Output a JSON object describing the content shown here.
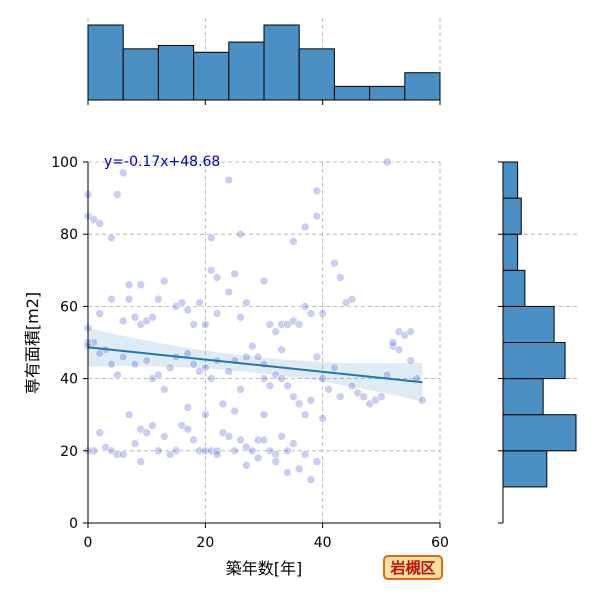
{
  "chart_data": {
    "type": "scatter",
    "xlabel": "築年数[年]",
    "ylabel": "専有面積[m2]",
    "xlim": [
      0,
      60
    ],
    "ylim": [
      0,
      100
    ],
    "x_ticks": [
      "0",
      "20",
      "40",
      "60"
    ],
    "y_ticks": [
      "0",
      "20",
      "40",
      "60",
      "80",
      "100"
    ],
    "regression": {
      "label": "y=-0.17x+48.68",
      "slope": -0.17,
      "intercept": 48.68,
      "x_range": [
        0,
        57
      ]
    },
    "badge": "岩槻区",
    "grid": true,
    "series": [
      {
        "type": "scatter",
        "points": [
          [
            0,
            91
          ],
          [
            0,
            85
          ],
          [
            1,
            84
          ],
          [
            2,
            83
          ],
          [
            5,
            91
          ],
          [
            6,
            97
          ],
          [
            4,
            79
          ],
          [
            2,
            58
          ],
          [
            0,
            54
          ],
          [
            1,
            50
          ],
          [
            0,
            50
          ],
          [
            0,
            49
          ],
          [
            3,
            48
          ],
          [
            4,
            62
          ],
          [
            6,
            56
          ],
          [
            7,
            66
          ],
          [
            7,
            62
          ],
          [
            8,
            57
          ],
          [
            9,
            55
          ],
          [
            9,
            66
          ],
          [
            10,
            56
          ],
          [
            11,
            57
          ],
          [
            12,
            62
          ],
          [
            13,
            67
          ],
          [
            15,
            60
          ],
          [
            16,
            61
          ],
          [
            17,
            59
          ],
          [
            18,
            55
          ],
          [
            19,
            61
          ],
          [
            20,
            55
          ],
          [
            21,
            70
          ],
          [
            22,
            68
          ],
          [
            22,
            58
          ],
          [
            24,
            64
          ],
          [
            25,
            69
          ],
          [
            26,
            57
          ],
          [
            27,
            61
          ],
          [
            28,
            49
          ],
          [
            30,
            67
          ],
          [
            31,
            55
          ],
          [
            32,
            53
          ],
          [
            33,
            48
          ],
          [
            33,
            55
          ],
          [
            34,
            55
          ],
          [
            35,
            56
          ],
          [
            36,
            55
          ],
          [
            37,
            60
          ],
          [
            38,
            58
          ],
          [
            39,
            85
          ],
          [
            39,
            92
          ],
          [
            40,
            58
          ],
          [
            37,
            82
          ],
          [
            35,
            78
          ],
          [
            42,
            72
          ],
          [
            43,
            68
          ],
          [
            44,
            61
          ],
          [
            45,
            62
          ],
          [
            21,
            79
          ],
          [
            24,
            95
          ],
          [
            26,
            80
          ],
          [
            2,
            47
          ],
          [
            4,
            44
          ],
          [
            5,
            41
          ],
          [
            6,
            46
          ],
          [
            8,
            44
          ],
          [
            10,
            45
          ],
          [
            11,
            40
          ],
          [
            12,
            41
          ],
          [
            13,
            37
          ],
          [
            14,
            43
          ],
          [
            15,
            46
          ],
          [
            17,
            47
          ],
          [
            18,
            44
          ],
          [
            19,
            42
          ],
          [
            20,
            43
          ],
          [
            21,
            40
          ],
          [
            22,
            45
          ],
          [
            24,
            42
          ],
          [
            25,
            45
          ],
          [
            26,
            37
          ],
          [
            27,
            46
          ],
          [
            29,
            46
          ],
          [
            30,
            40
          ],
          [
            31,
            38
          ],
          [
            32,
            41
          ],
          [
            33,
            40
          ],
          [
            34,
            38
          ],
          [
            35,
            35
          ],
          [
            36,
            33
          ],
          [
            37,
            30
          ],
          [
            38,
            34
          ],
          [
            39,
            46
          ],
          [
            40,
            40
          ],
          [
            41,
            37
          ],
          [
            42,
            43
          ],
          [
            43,
            35
          ],
          [
            45,
            38
          ],
          [
            46,
            36
          ],
          [
            47,
            35
          ],
          [
            48,
            33
          ],
          [
            49,
            34
          ],
          [
            50,
            35
          ],
          [
            51,
            41
          ],
          [
            52,
            49
          ],
          [
            52,
            50
          ],
          [
            53,
            48
          ],
          [
            53,
            53
          ],
          [
            54,
            52
          ],
          [
            55,
            53
          ],
          [
            56,
            40
          ],
          [
            57,
            34
          ],
          [
            51,
            100
          ],
          [
            55,
            45
          ],
          [
            2,
            25
          ],
          [
            3,
            21
          ],
          [
            4,
            20
          ],
          [
            5,
            19
          ],
          [
            7,
            30
          ],
          [
            8,
            22
          ],
          [
            9,
            26
          ],
          [
            9,
            17
          ],
          [
            10,
            25
          ],
          [
            11,
            27
          ],
          [
            12,
            20
          ],
          [
            13,
            24
          ],
          [
            14,
            19
          ],
          [
            15,
            20
          ],
          [
            16,
            27
          ],
          [
            17,
            26
          ],
          [
            17,
            32
          ],
          [
            18,
            23
          ],
          [
            19,
            20
          ],
          [
            20,
            20
          ],
          [
            20,
            30
          ],
          [
            21,
            20
          ],
          [
            22,
            20
          ],
          [
            23,
            25
          ],
          [
            24,
            24
          ],
          [
            25,
            20
          ],
          [
            26,
            23
          ],
          [
            27,
            21
          ],
          [
            28,
            20
          ],
          [
            29,
            23
          ],
          [
            29,
            18
          ],
          [
            30,
            23
          ],
          [
            30,
            30
          ],
          [
            31,
            20
          ],
          [
            32,
            19
          ],
          [
            33,
            24
          ],
          [
            34,
            20
          ],
          [
            35,
            22
          ],
          [
            36,
            15
          ],
          [
            37,
            19
          ],
          [
            38,
            12
          ],
          [
            39,
            17
          ],
          [
            40,
            29
          ],
          [
            34,
            14
          ],
          [
            32,
            17
          ],
          [
            27,
            16
          ],
          [
            22,
            19
          ],
          [
            1,
            20
          ],
          [
            0,
            20
          ],
          [
            25,
            31
          ],
          [
            23,
            33
          ],
          [
            30,
            44
          ],
          [
            6,
            19
          ]
        ]
      }
    ],
    "top_histogram": {
      "bins": [
        0,
        6,
        12,
        18,
        24,
        30,
        36,
        42,
        48,
        54,
        60
      ],
      "counts": [
        22,
        15,
        16,
        14,
        17,
        22,
        15,
        4,
        4,
        8
      ]
    },
    "right_histogram": {
      "bins": [
        10,
        20,
        30,
        40,
        50,
        60,
        70,
        80,
        90,
        100
      ],
      "counts": [
        12,
        20,
        11,
        17,
        14,
        6,
        4,
        5,
        4,
        5
      ]
    }
  }
}
